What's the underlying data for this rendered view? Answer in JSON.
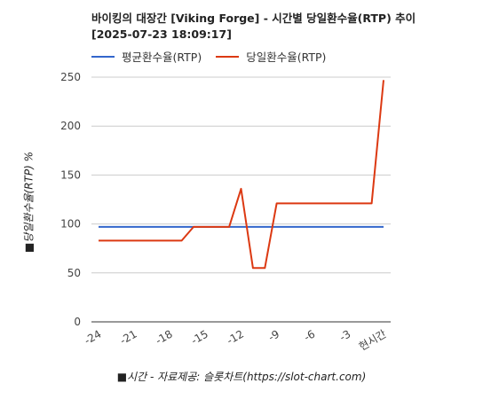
{
  "title_lines": [
    "바이킹의 대장간 [Viking Forge] - 시간별 당일환수율(RTP) 추이",
    "[2025-07-23 18:09:17]"
  ],
  "chart_data": {
    "type": "line",
    "x": [
      "-24",
      "-23",
      "-22",
      "-21",
      "-20",
      "-19",
      "-18",
      "-17",
      "-16",
      "-15",
      "-14",
      "-13",
      "-12",
      "-11",
      "-10",
      "-9",
      "-8",
      "-7",
      "-6",
      "-5",
      "-4",
      "-3",
      "-2",
      "-1",
      "현시간"
    ],
    "x_tick_labels": [
      "-24",
      "-21",
      "-18",
      "-15",
      "-12",
      "-9",
      "-6",
      "-3",
      "현시간"
    ],
    "series": [
      {
        "name": "평균환수율(RTP)",
        "color": "#3366cc",
        "values": [
          97,
          97,
          97,
          97,
          97,
          97,
          97,
          97,
          97,
          97,
          97,
          97,
          97,
          97,
          97,
          97,
          97,
          97,
          97,
          97,
          97,
          97,
          97,
          97,
          97
        ]
      },
      {
        "name": "당일환수율(RTP)",
        "color": "#dc3912",
        "values": [
          83,
          83,
          83,
          83,
          83,
          83,
          83,
          83,
          97,
          97,
          97,
          97,
          136,
          55,
          55,
          121,
          121,
          121,
          121,
          121,
          121,
          121,
          121,
          121,
          247
        ]
      }
    ],
    "ylim": [
      0,
      250
    ],
    "y_ticks": [
      0,
      50,
      100,
      150,
      200,
      250
    ],
    "ylabel": "■당일환수율(RTP) %",
    "xlabel": "■시간 - 자료제공: 슬롯차트(https://slot-chart.com)",
    "grid": true,
    "legend_position": "top-left"
  }
}
